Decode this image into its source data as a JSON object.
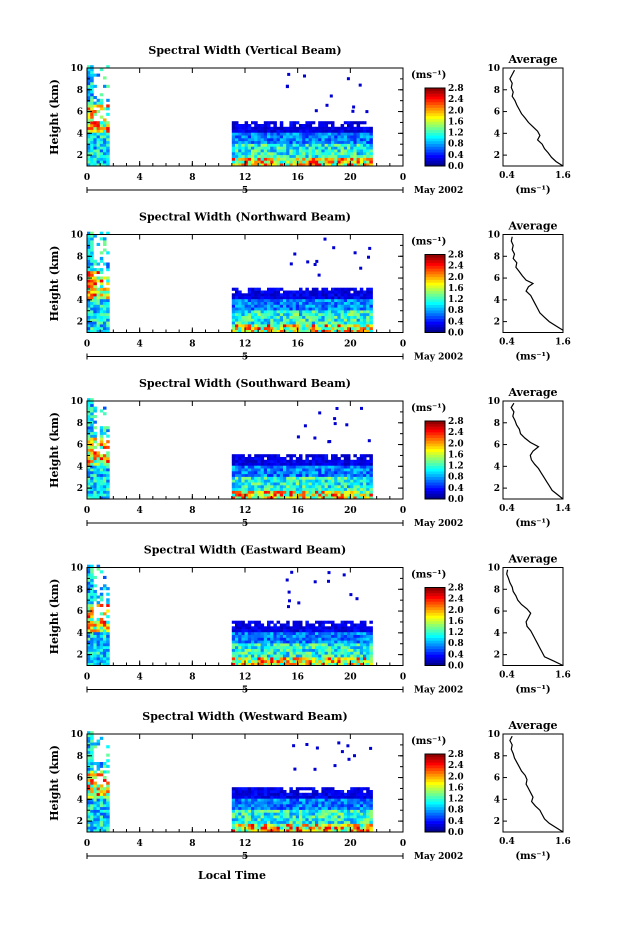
{
  "figure": {
    "xlabel": "Local Time",
    "panels": [
      {
        "title": "Spectral Width (Vertical Beam)",
        "avg_max_label": "1.6",
        "avg_profile": [
          [
            0.55,
            9.8
          ],
          [
            0.5,
            9.4
          ],
          [
            0.45,
            9.0
          ],
          [
            0.5,
            8.6
          ],
          [
            0.48,
            8.2
          ],
          [
            0.52,
            7.8
          ],
          [
            0.5,
            7.4
          ],
          [
            0.56,
            7.0
          ],
          [
            0.6,
            6.6
          ],
          [
            0.65,
            6.2
          ],
          [
            0.7,
            5.8
          ],
          [
            0.78,
            5.4
          ],
          [
            0.85,
            5.0
          ],
          [
            0.95,
            4.6
          ],
          [
            1.05,
            4.2
          ],
          [
            1.1,
            3.8
          ],
          [
            1.05,
            3.4
          ],
          [
            1.15,
            3.0
          ],
          [
            1.2,
            2.6
          ],
          [
            1.28,
            2.2
          ],
          [
            1.35,
            1.8
          ],
          [
            1.45,
            1.4
          ],
          [
            1.6,
            1.0
          ]
        ]
      },
      {
        "title": "Spectral Width (Northward Beam)",
        "avg_max_label": "1.6",
        "avg_profile": [
          [
            0.5,
            9.8
          ],
          [
            0.48,
            9.4
          ],
          [
            0.52,
            9.0
          ],
          [
            0.5,
            8.6
          ],
          [
            0.55,
            8.2
          ],
          [
            0.52,
            7.8
          ],
          [
            0.6,
            7.4
          ],
          [
            0.58,
            7.0
          ],
          [
            0.65,
            6.6
          ],
          [
            0.72,
            6.2
          ],
          [
            0.8,
            5.8
          ],
          [
            0.95,
            5.5
          ],
          [
            0.85,
            5.2
          ],
          [
            0.8,
            4.8
          ],
          [
            0.9,
            4.4
          ],
          [
            0.95,
            4.0
          ],
          [
            1.0,
            3.6
          ],
          [
            1.05,
            3.2
          ],
          [
            1.1,
            2.8
          ],
          [
            1.2,
            2.4
          ],
          [
            1.3,
            2.0
          ],
          [
            1.45,
            1.6
          ],
          [
            1.6,
            1.2
          ]
        ]
      },
      {
        "title": "Spectral Width (Southward Beam)",
        "avg_max_label": "1.4",
        "avg_profile": [
          [
            0.5,
            9.8
          ],
          [
            0.45,
            9.4
          ],
          [
            0.5,
            9.0
          ],
          [
            0.48,
            8.6
          ],
          [
            0.52,
            8.2
          ],
          [
            0.55,
            7.8
          ],
          [
            0.6,
            7.4
          ],
          [
            0.62,
            7.0
          ],
          [
            0.7,
            6.6
          ],
          [
            0.8,
            6.2
          ],
          [
            0.95,
            5.8
          ],
          [
            0.85,
            5.4
          ],
          [
            0.8,
            5.0
          ],
          [
            0.82,
            4.6
          ],
          [
            0.88,
            4.2
          ],
          [
            0.95,
            3.8
          ],
          [
            1.0,
            3.4
          ],
          [
            1.05,
            3.0
          ],
          [
            1.1,
            2.6
          ],
          [
            1.15,
            2.2
          ],
          [
            1.2,
            1.8
          ],
          [
            1.3,
            1.4
          ],
          [
            1.4,
            1.0
          ]
        ]
      },
      {
        "title": "Spectral Width (Eastward Beam)",
        "avg_max_label": "1.6",
        "avg_profile": [
          [
            0.4,
            9.8
          ],
          [
            0.38,
            9.4
          ],
          [
            0.42,
            9.0
          ],
          [
            0.45,
            8.6
          ],
          [
            0.5,
            8.2
          ],
          [
            0.52,
            7.8
          ],
          [
            0.58,
            7.4
          ],
          [
            0.62,
            7.0
          ],
          [
            0.7,
            6.6
          ],
          [
            0.82,
            6.2
          ],
          [
            0.9,
            5.8
          ],
          [
            0.85,
            5.4
          ],
          [
            0.8,
            5.0
          ],
          [
            0.82,
            4.6
          ],
          [
            0.9,
            4.2
          ],
          [
            0.95,
            3.8
          ],
          [
            1.0,
            3.4
          ],
          [
            1.05,
            3.0
          ],
          [
            1.1,
            2.6
          ],
          [
            1.15,
            2.2
          ],
          [
            1.2,
            1.8
          ],
          [
            1.4,
            1.4
          ],
          [
            1.6,
            1.0
          ]
        ]
      },
      {
        "title": "Spectral Width (Westward Beam)",
        "avg_max_label": "1.6",
        "avg_profile": [
          [
            0.5,
            9.8
          ],
          [
            0.45,
            9.4
          ],
          [
            0.5,
            9.0
          ],
          [
            0.48,
            8.6
          ],
          [
            0.52,
            8.2
          ],
          [
            0.55,
            7.8
          ],
          [
            0.6,
            7.4
          ],
          [
            0.65,
            7.0
          ],
          [
            0.7,
            6.6
          ],
          [
            0.78,
            6.2
          ],
          [
            0.82,
            5.8
          ],
          [
            0.8,
            5.4
          ],
          [
            0.85,
            5.0
          ],
          [
            0.9,
            4.6
          ],
          [
            0.95,
            4.2
          ],
          [
            0.92,
            3.8
          ],
          [
            1.0,
            3.4
          ],
          [
            1.1,
            3.0
          ],
          [
            1.15,
            2.6
          ],
          [
            1.2,
            2.2
          ],
          [
            1.3,
            1.8
          ],
          [
            1.45,
            1.4
          ],
          [
            1.6,
            1.0
          ]
        ]
      }
    ]
  },
  "chart_data": {
    "type": "heatmap",
    "title": "Spectral Width",
    "xlabel": "Local Time",
    "ylabel": "Height (km)",
    "x_ticks": [
      "0",
      "4",
      "8",
      "12",
      "16",
      "20",
      "0"
    ],
    "y_ticks": [
      "2",
      "4",
      "6",
      "8",
      "10"
    ],
    "xlim": [
      0,
      24
    ],
    "ylim": [
      1,
      10
    ],
    "date_label": "5",
    "month_label": "May 2002",
    "colorbar": {
      "unit": "(ms⁻¹)",
      "ticks": [
        "0.0",
        "0.4",
        "0.8",
        "1.2",
        "1.6",
        "2.0",
        "2.4",
        "2.8"
      ],
      "range": [
        0,
        2.8
      ]
    },
    "average": {
      "title": "Average",
      "xlabel": "(ms⁻¹)",
      "x_min_label": "0.4",
      "ylim": [
        1,
        10
      ]
    },
    "data_coverage": [
      {
        "from_hour": 0,
        "to_hour": 1.5,
        "height_top_km": 10
      },
      {
        "from_hour": 11,
        "to_hour": 21.5,
        "height_top_km": 5
      }
    ]
  }
}
